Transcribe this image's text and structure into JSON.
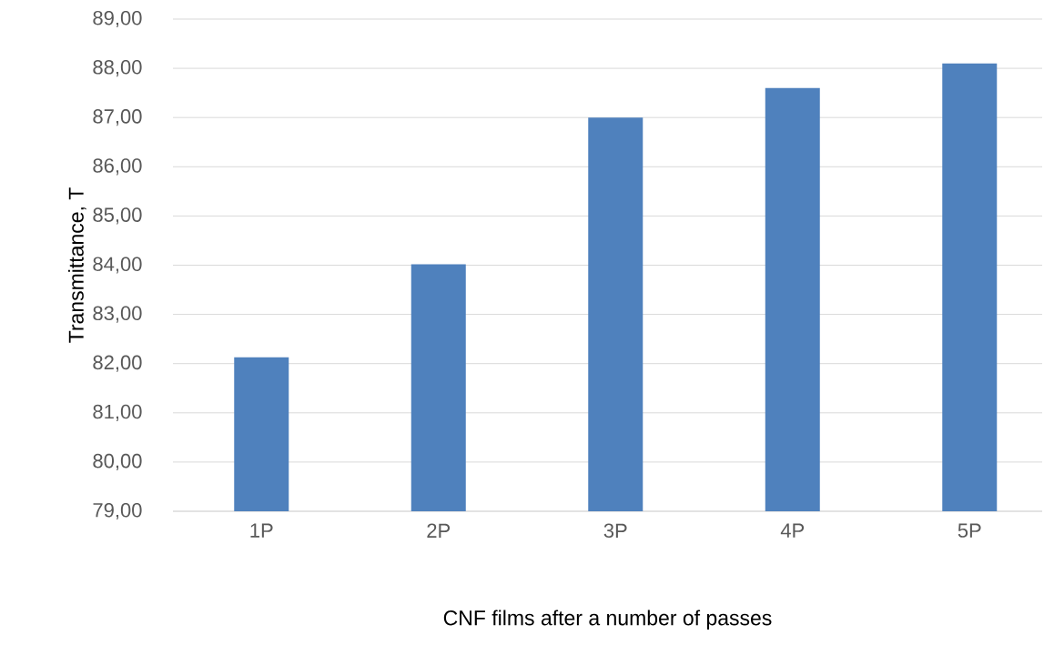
{
  "chart_data": {
    "type": "bar",
    "xlabel": "CNF films after  a number of passes",
    "ylabel": "Transmittance, T",
    "categories": [
      "1P",
      "2P",
      "3P",
      "4P",
      "5P"
    ],
    "values": [
      82.13,
      84.02,
      87.0,
      87.6,
      88.1
    ],
    "color": "#4f81bd",
    "ylim": [
      79,
      89
    ],
    "yticks": [
      {
        "value": 79,
        "label": "79,00"
      },
      {
        "value": 80,
        "label": "80,00"
      },
      {
        "value": 81,
        "label": "81,00"
      },
      {
        "value": 82,
        "label": "82,00"
      },
      {
        "value": 83,
        "label": "83,00"
      },
      {
        "value": 84,
        "label": "84,00"
      },
      {
        "value": 85,
        "label": "85,00"
      },
      {
        "value": 86,
        "label": "86,00"
      },
      {
        "value": 87,
        "label": "87,00"
      },
      {
        "value": 88,
        "label": "88,00"
      },
      {
        "value": 89,
        "label": "89,00"
      }
    ],
    "grid": "y"
  }
}
